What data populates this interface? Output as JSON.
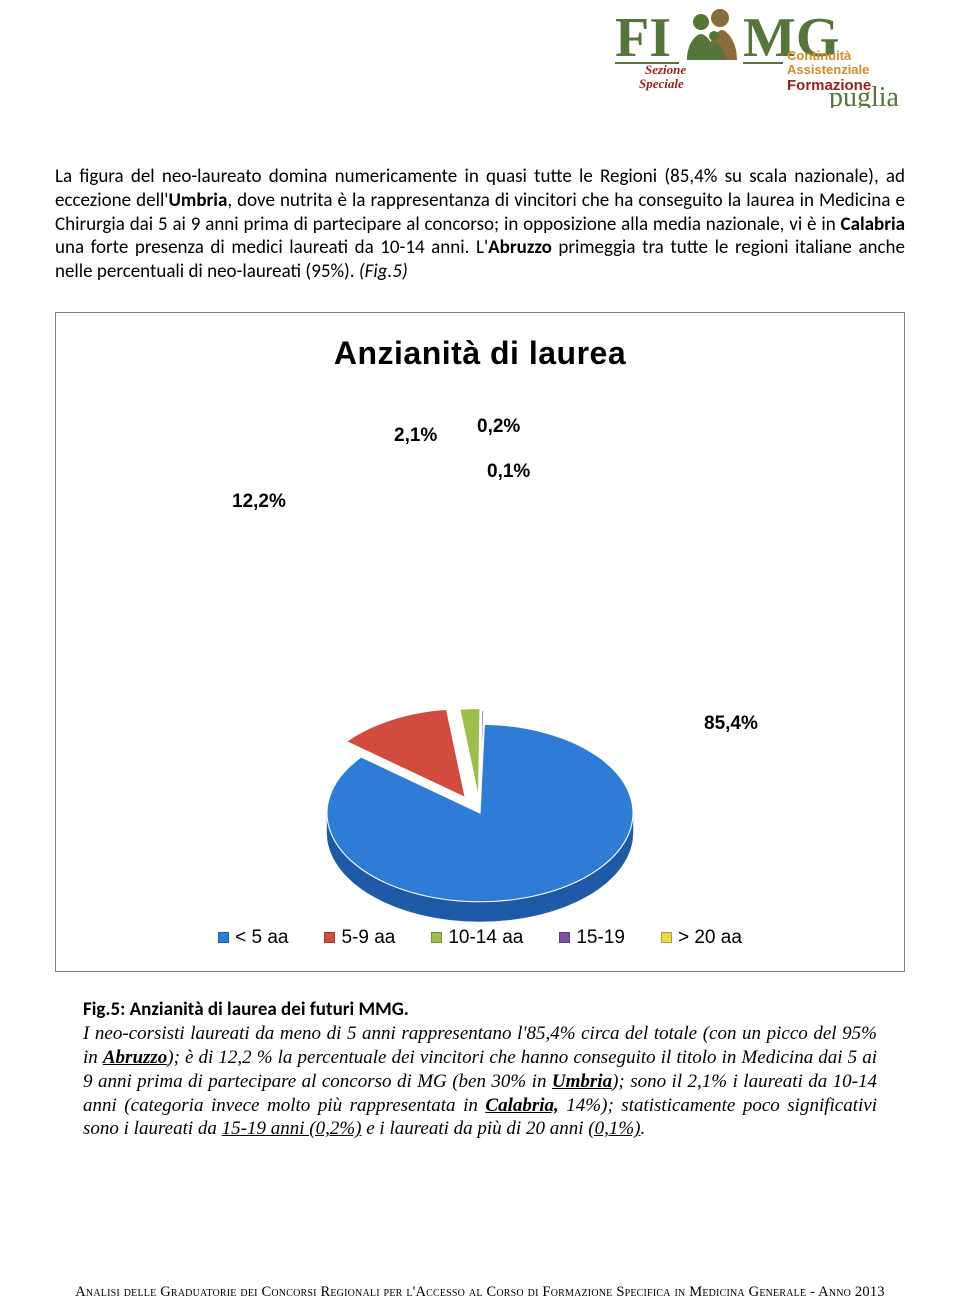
{
  "logo": {
    "fi": "FI",
    "mg": "MG",
    "sezione": "Sezione",
    "speciale": "Speciale",
    "continuita": "Continuità",
    "assistenziale": "Assistenziale",
    "formazione": "Formazione",
    "puglia": "puglia",
    "green": "#56753a",
    "orange": "#d88a2a",
    "red": "#9a1f1f"
  },
  "body": {
    "p1_a": "La figura del neo-laureato domina numericamente in quasi tutte le Regioni (85,4% su scala nazionale), ad eccezione dell'",
    "p1_umbria": "Umbria",
    "p1_b": ", dove nutrita è la rappresentanza di vincitori che ha conseguito la laurea in Medicina e Chirurgia dai 5 ai 9 anni prima di partecipare al concorso; in opposizione alla media nazionale, vi è in ",
    "p1_calabria": "Calabria",
    "p1_c": " una forte presenza di medici laureati da 10-14 anni. L'",
    "p1_abruzzo": "Abruzzo",
    "p1_d": " primeggia tra tutte le regioni italiane anche nelle percentuali di neo-laureati (95%). ",
    "p1_fig": "(Fig.5)"
  },
  "chart": {
    "title": "Anzianità di laurea",
    "type": "pie-3d-exploded",
    "slices": [
      {
        "label": "< 5 aa",
        "value": 85.4,
        "pct": "85,4%",
        "color": "#2f7cd6",
        "edge": "#1f5aa8"
      },
      {
        "label": "5-9 aa",
        "value": 12.2,
        "pct": "12,2%",
        "color": "#d14b3e",
        "edge": "#a22f25"
      },
      {
        "label": "10-14 aa",
        "value": 2.1,
        "pct": "2,1%",
        "color": "#9cbf4a",
        "edge": "#6f8f2c"
      },
      {
        "label": "15-19",
        "value": 0.2,
        "pct": "0,2%",
        "color": "#7a52a8",
        "edge": "#5a3a80"
      },
      {
        "label": "> 20 aa",
        "value": 0.1,
        "pct": "0,1%",
        "color": "#e9d84a",
        "edge": "#b8a82a"
      }
    ],
    "label_font_size": 19,
    "title_font_size": 32,
    "background": "#ffffff",
    "border": "#808080",
    "legend_markers": [
      "#2f7cd6",
      "#d14b3e",
      "#9cbf4a",
      "#7a52a8",
      "#e9d84a"
    ]
  },
  "caption": {
    "title": "Fig.5: Anzianità di laurea dei futuri MMG.",
    "a": "I neo-corsisti laureati da meno di 5 anni rappresentano l'85,4% circa del totale (con un picco del 95% in ",
    "abruzzo": "Abruzzo",
    "b": "); è di 12,2 % la percentuale dei vincitori che hanno conseguito il titolo in Medicina dai 5 ai 9 anni prima di partecipare al concorso di MG (ben 30% in ",
    "umbria": "Umbria",
    "c": "); sono il 2,1%  i laureati da 10-14 anni (categoria invece molto più rappresentata in ",
    "calabria": "Calabria,",
    "d": " 14%); statisticamente poco significativi sono i laureati da ",
    "u1": "15-19 anni (0,2%)",
    "e": " e i laureati da più di 20 anni ",
    "u2": "(0,1%)",
    "f": "."
  },
  "footer": "Analisi delle Graduatorie dei Concorsi Regionali per l'Accesso al Corso di Formazione Specifica in Medicina Generale - Anno 2013"
}
